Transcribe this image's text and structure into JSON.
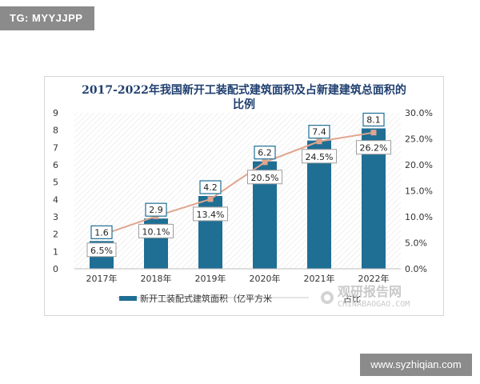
{
  "tags": {
    "top": "TG: MYYJJPP",
    "bottom": "www.syzhiqian.com"
  },
  "watermark": {
    "main": "观研报告网",
    "sub": "CHINABAOGAO.COM"
  },
  "colors": {
    "bar": "#1f6e94",
    "line": "#e0a58e",
    "marker": "#e0a58e",
    "title": "#1f3f6f"
  },
  "chart_data": {
    "type": "bar",
    "title_line1": "2017-2022年我国新开工装配式建筑面积及占新建建筑总面积的",
    "title_line2": "比例",
    "categories": [
      "2017年",
      "2018年",
      "2019年",
      "2020年",
      "2021年",
      "2022年"
    ],
    "series": [
      {
        "name": "新开工装配式建筑面积（亿平方米",
        "type": "bar",
        "axis": "left",
        "values": [
          1.6,
          2.9,
          4.2,
          6.2,
          7.4,
          8.1
        ],
        "labels": [
          "1.6",
          "2.9",
          "4.2",
          "6.2",
          "7.4",
          "8.1"
        ]
      },
      {
        "name": "占比",
        "type": "line",
        "axis": "right",
        "values": [
          6.5,
          10.1,
          13.4,
          20.5,
          24.5,
          26.2
        ],
        "labels": [
          "6.5%",
          "10.1%",
          "13.4%",
          "20.5%",
          "24.5%",
          "26.2%"
        ]
      }
    ],
    "ylim_left": [
      0,
      9
    ],
    "yticks_left": [
      "0",
      "1",
      "2",
      "3",
      "4",
      "5",
      "6",
      "7",
      "8",
      "9"
    ],
    "ylim_right": [
      0,
      30
    ],
    "yticks_right": [
      "0.0%",
      "5.0%",
      "10.0%",
      "15.0%",
      "20.0%",
      "25.0%",
      "30.0%"
    ],
    "legend_position": "bottom",
    "grid": false
  }
}
